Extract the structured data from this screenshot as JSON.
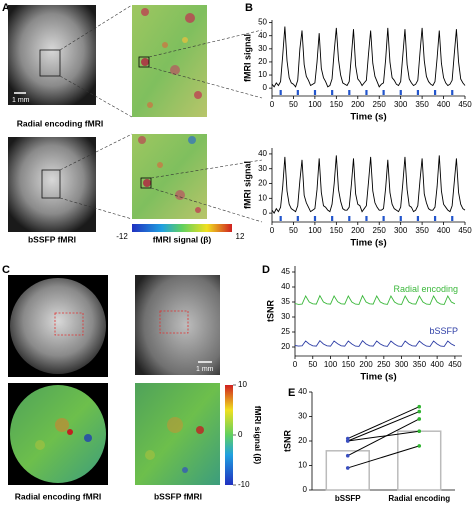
{
  "panel_labels": [
    "A",
    "B",
    "C",
    "D",
    "E"
  ],
  "images": {
    "scale_bar": "1 mm",
    "caption_radial": "Radial encoding fMRI",
    "caption_bssfp": "bSSFP fMRI"
  },
  "colorbar_a": {
    "label": "fMRI signal (β)",
    "min": -12,
    "max": 12
  },
  "colorbar_c": {
    "label": "fMRI signal (β)",
    "ticks": [
      -10,
      0,
      10
    ],
    "lim": [
      -10,
      10
    ]
  },
  "chart_data": [
    {
      "type": "line",
      "xlabel": "Time (s)",
      "ylabel": "fMRI signal",
      "x": [
        0,
        5,
        10,
        15,
        20,
        25,
        30,
        35,
        40,
        45,
        50,
        55,
        60,
        65,
        70,
        75,
        80,
        85,
        90,
        95,
        100,
        105,
        110,
        115,
        120,
        125,
        130,
        135,
        140,
        145,
        150,
        155,
        160,
        165,
        170,
        175,
        180,
        185,
        190,
        195,
        200,
        205,
        210,
        215,
        220,
        225,
        230,
        235,
        240,
        245,
        250,
        255,
        260,
        265,
        270,
        275,
        280,
        285,
        290,
        295,
        300,
        305,
        310,
        315,
        320,
        325,
        330,
        335,
        340,
        345,
        350,
        355,
        360,
        365,
        370,
        375,
        380,
        385,
        390,
        395,
        400,
        405,
        410,
        415,
        420,
        425,
        430,
        435,
        440,
        445,
        450
      ],
      "series": [
        {
          "color": "#000000",
          "values": [
            3,
            1,
            4,
            2,
            5,
            25,
            47,
            21,
            8,
            4,
            3,
            1,
            6,
            30,
            44,
            18,
            9,
            6,
            2,
            3,
            4,
            20,
            42,
            15,
            8,
            5,
            1,
            2,
            7,
            28,
            46,
            22,
            10,
            4,
            3,
            2,
            5,
            24,
            45,
            17,
            7,
            5,
            2,
            4,
            6,
            26,
            44,
            19,
            9,
            5,
            1,
            3,
            4,
            22,
            46,
            20,
            8,
            6,
            3,
            2,
            5,
            25,
            45,
            18,
            7,
            4,
            2,
            3,
            6,
            27,
            46,
            21,
            9,
            5,
            3,
            2,
            5,
            23,
            44,
            19,
            8,
            4,
            2,
            3,
            6,
            26,
            45,
            20,
            7,
            4,
            2
          ]
        }
      ],
      "stimuli": [
        20,
        60,
        100,
        140,
        180,
        220,
        260,
        300,
        340,
        380,
        420
      ],
      "stimulus_color": "#2255cc",
      "xlim": [
        0,
        450
      ],
      "xticks": [
        0,
        50,
        100,
        150,
        200,
        250,
        300,
        350,
        400,
        450
      ],
      "ylim": [
        -6,
        52
      ],
      "yticks": [
        0,
        10,
        20,
        30,
        40,
        50
      ]
    },
    {
      "type": "line",
      "xlabel": "Time (s)",
      "ylabel": "fMRI signal",
      "x": [
        0,
        5,
        10,
        15,
        20,
        25,
        30,
        35,
        40,
        45,
        50,
        55,
        60,
        65,
        70,
        75,
        80,
        85,
        90,
        95,
        100,
        105,
        110,
        115,
        120,
        125,
        130,
        135,
        140,
        145,
        150,
        155,
        160,
        165,
        170,
        175,
        180,
        185,
        190,
        195,
        200,
        205,
        210,
        215,
        220,
        225,
        230,
        235,
        240,
        245,
        250,
        255,
        260,
        265,
        270,
        275,
        280,
        285,
        290,
        295,
        300,
        305,
        310,
        315,
        320,
        325,
        330,
        335,
        340,
        345,
        350,
        355,
        360,
        365,
        370,
        375,
        380,
        385,
        390,
        395,
        400,
        405,
        410,
        415,
        420,
        425,
        430,
        435,
        440,
        445,
        450
      ],
      "series": [
        {
          "color": "#000000",
          "values": [
            2,
            0,
            3,
            1,
            4,
            18,
            38,
            15,
            6,
            3,
            2,
            1,
            5,
            22,
            36,
            12,
            7,
            4,
            1,
            2,
            3,
            16,
            37,
            14,
            5,
            4,
            2,
            1,
            6,
            20,
            39,
            16,
            8,
            3,
            2,
            2,
            4,
            19,
            37,
            13,
            6,
            5,
            1,
            3,
            5,
            21,
            38,
            15,
            7,
            4,
            2,
            2,
            3,
            17,
            36,
            14,
            6,
            3,
            2,
            1,
            4,
            20,
            38,
            16,
            5,
            4,
            1,
            2,
            5,
            22,
            37,
            13,
            7,
            3,
            2,
            2,
            4,
            18,
            39,
            15,
            6,
            4,
            2,
            1,
            5,
            21,
            37,
            14,
            6,
            3,
            2
          ]
        }
      ],
      "stimuli": [
        20,
        60,
        100,
        140,
        180,
        220,
        260,
        300,
        340,
        380,
        420
      ],
      "stimulus_color": "#2255cc",
      "xlim": [
        0,
        450
      ],
      "xticks": [
        0,
        50,
        100,
        150,
        200,
        250,
        300,
        350,
        400,
        450
      ],
      "ylim": [
        -6,
        44
      ],
      "yticks": [
        0,
        10,
        20,
        30,
        40
      ]
    },
    {
      "type": "line",
      "xlabel": "Time (s)",
      "ylabel": "tSNR",
      "x": [
        0,
        10,
        20,
        30,
        40,
        50,
        60,
        70,
        80,
        90,
        100,
        110,
        120,
        130,
        140,
        150,
        160,
        170,
        180,
        190,
        200,
        210,
        220,
        230,
        240,
        250,
        260,
        270,
        280,
        290,
        300,
        310,
        320,
        330,
        340,
        350,
        360,
        370,
        380,
        390,
        400,
        410,
        420,
        430,
        440,
        450
      ],
      "series": [
        {
          "name": "Radial encoding",
          "color": "#3cb83c",
          "values": [
            34.5,
            34.2,
            34.3,
            37,
            35,
            34.4,
            34.3,
            37.1,
            35,
            34.4,
            34.3,
            37,
            35.1,
            34.4,
            34.3,
            37,
            35,
            34.3,
            34.2,
            37.1,
            35,
            34.4,
            34.3,
            37,
            35,
            34.4,
            34.2,
            37,
            35,
            34.3,
            34.2,
            37,
            35,
            34.4,
            34.3,
            37,
            35,
            34.3,
            34.2,
            37,
            35,
            34.3,
            34.2,
            37,
            35,
            34.4
          ]
        },
        {
          "name": "bSSFP",
          "color": "#2f3fa6",
          "values": [
            20.5,
            20.3,
            20.4,
            22,
            21,
            20.4,
            20.3,
            22.1,
            21,
            20.4,
            20.3,
            22,
            21.1,
            20.4,
            20.3,
            22,
            21,
            20.3,
            20.2,
            22.1,
            21,
            20.4,
            20.3,
            22,
            21,
            20.4,
            20.2,
            22,
            21,
            20.3,
            20.2,
            22,
            21,
            20.4,
            20.3,
            22,
            21,
            20.3,
            20.2,
            22,
            21,
            20.3,
            20.2,
            22,
            21,
            20.4
          ]
        }
      ],
      "xlim": [
        0,
        470
      ],
      "xticks": [
        0,
        50,
        100,
        150,
        200,
        250,
        300,
        350,
        400,
        450
      ],
      "ylim": [
        17,
        47
      ],
      "yticks": [
        20,
        25,
        30,
        35,
        40,
        45
      ]
    },
    {
      "type": "bar",
      "ylabel": "tSNR",
      "categories": [
        "bSSFP",
        "Radial encoding"
      ],
      "values": [
        16,
        24
      ],
      "color": "#ffffff",
      "edge_color": "#bbbbbb",
      "points": [
        [
          21,
          34
        ],
        [
          20,
          32
        ],
        [
          20,
          24
        ],
        [
          14,
          29
        ],
        [
          9,
          18
        ]
      ],
      "point_colors": [
        "#3a4fc0",
        "#2fb52f"
      ],
      "ylim": [
        0,
        40
      ],
      "yticks": [
        0,
        10,
        20,
        30,
        40
      ]
    }
  ]
}
